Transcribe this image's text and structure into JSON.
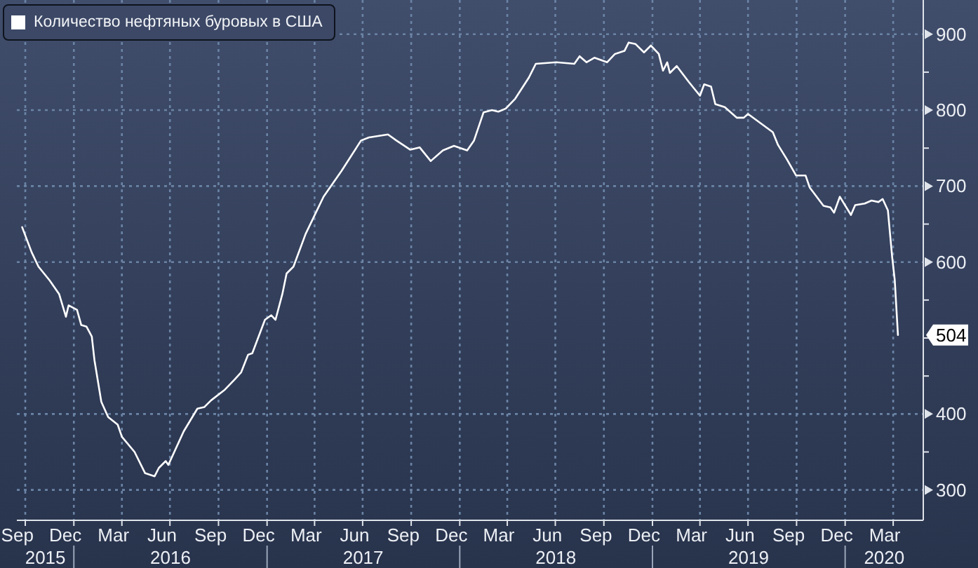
{
  "chart_data": {
    "type": "line",
    "legend": "top left",
    "grid": true,
    "line_style": "solid",
    "marker": "none",
    "x": [
      "2015-09-25",
      "2015-10-13",
      "2015-10-26",
      "2015-11-16",
      "2015-12-04",
      "2015-12-17",
      "2015-12-22",
      "2016-01-07",
      "2016-01-15",
      "2016-01-25",
      "2016-02-04",
      "2016-02-09",
      "2016-02-22",
      "2016-03-06",
      "2016-03-24",
      "2016-04-01",
      "2016-04-25",
      "2016-05-15",
      "2016-06-02",
      "2016-06-10",
      "2016-06-23",
      "2016-06-28",
      "2016-07-27",
      "2016-08-22",
      "2016-09-04",
      "2016-09-17",
      "2016-10-13",
      "2016-10-31",
      "2016-11-13",
      "2016-11-26",
      "2016-12-04",
      "2016-12-28",
      "2017-01-09",
      "2017-01-17",
      "2017-01-30",
      "2017-02-07",
      "2017-02-20",
      "2017-03-15",
      "2017-04-18",
      "2017-05-22",
      "2017-06-28",
      "2017-07-13",
      "2017-08-18",
      "2017-09-03",
      "2017-09-29",
      "2017-10-17",
      "2017-11-07",
      "2017-11-30",
      "2017-12-21",
      "2018-01-15",
      "2018-01-28",
      "2018-02-15",
      "2018-03-03",
      "2018-03-15",
      "2018-03-29",
      "2018-04-16",
      "2018-05-12",
      "2018-05-25",
      "2018-07-03",
      "2018-08-06",
      "2018-08-16",
      "2018-08-29",
      "2018-09-13",
      "2018-10-07",
      "2018-10-22",
      "2018-11-09",
      "2018-11-17",
      "2018-11-30",
      "2018-12-16",
      "2018-12-29",
      "2019-01-13",
      "2019-01-21",
      "2019-01-29",
      "2019-02-03",
      "2019-02-16",
      "2019-03-11",
      "2019-04-01",
      "2019-04-09",
      "2019-04-22",
      "2019-04-30",
      "2019-05-18",
      "2019-06-10",
      "2019-06-23",
      "2019-07-01",
      "2019-08-17",
      "2019-08-27",
      "2019-09-12",
      "2019-09-30",
      "2019-10-18",
      "2019-10-26",
      "2019-11-21",
      "2019-12-04",
      "2019-12-11",
      "2019-12-22",
      "2020-01-12",
      "2020-01-20",
      "2020-02-07",
      "2020-02-20",
      "2020-03-04",
      "2020-03-12",
      "2020-03-22",
      "2020-03-30",
      "2020-04-04",
      "2020-04-10"
    ],
    "series": [
      {
        "name": "Количество нефтяных буровых в США",
        "color": "#ffffff",
        "values": [
          646,
          613,
          594,
          576,
          558,
          528,
          543,
          537,
          517,
          515,
          502,
          471,
          416,
          396,
          386,
          370,
          350,
          322,
          318,
          329,
          338,
          333,
          377,
          407,
          409,
          418,
          432,
          445,
          455,
          478,
          480,
          524,
          530,
          524,
          558,
          585,
          594,
          637,
          686,
          720,
          760,
          764,
          768,
          760,
          748,
          751,
          733,
          747,
          753,
          747,
          760,
          797,
          800,
          798,
          802,
          815,
          843,
          861,
          863,
          861,
          871,
          863,
          869,
          863,
          874,
          878,
          889,
          887,
          876,
          885,
          874,
          852,
          863,
          849,
          858,
          837,
          819,
          834,
          831,
          808,
          804,
          790,
          790,
          795,
          771,
          754,
          736,
          714,
          714,
          698,
          674,
          672,
          665,
          686,
          662,
          675,
          677,
          681,
          679,
          683,
          668,
          607,
          576,
          504
        ]
      }
    ],
    "annotations": [
      {
        "text": "504",
        "x": "2020-04-10",
        "y": 504
      }
    ],
    "xlim": [
      "2015-09-15",
      "2020-05-28"
    ],
    "xticks": [
      {
        "value": "2015-09-16",
        "label": "Sep"
      },
      {
        "value": "2015-10-01",
        "label": null
      },
      {
        "value": "2015-12-16",
        "label": "Dec"
      },
      {
        "value": "2016-01-01",
        "label": null
      },
      {
        "value": "2016-03-16",
        "label": "Mar"
      },
      {
        "value": "2016-04-01",
        "label": null
      },
      {
        "value": "2016-06-16",
        "label": "Jun"
      },
      {
        "value": "2016-07-01",
        "label": null
      },
      {
        "value": "2016-09-16",
        "label": "Sep"
      },
      {
        "value": "2016-10-01",
        "label": null
      },
      {
        "value": "2016-12-16",
        "label": "Dec"
      },
      {
        "value": "2017-01-01",
        "label": null
      },
      {
        "value": "2017-03-16",
        "label": "Mar"
      },
      {
        "value": "2017-04-01",
        "label": null
      },
      {
        "value": "2017-06-16",
        "label": "Jun"
      },
      {
        "value": "2017-07-01",
        "label": null
      },
      {
        "value": "2017-09-16",
        "label": "Sep"
      },
      {
        "value": "2017-10-01",
        "label": null
      },
      {
        "value": "2017-12-16",
        "label": "Dec"
      },
      {
        "value": "2018-01-01",
        "label": null
      },
      {
        "value": "2018-03-16",
        "label": "Mar"
      },
      {
        "value": "2018-04-01",
        "label": null
      },
      {
        "value": "2018-06-16",
        "label": "Jun"
      },
      {
        "value": "2018-07-01",
        "label": null
      },
      {
        "value": "2018-09-16",
        "label": "Sep"
      },
      {
        "value": "2018-10-01",
        "label": null
      },
      {
        "value": "2018-12-16",
        "label": "Dec"
      },
      {
        "value": "2019-01-01",
        "label": null
      },
      {
        "value": "2019-03-16",
        "label": "Mar"
      },
      {
        "value": "2019-04-01",
        "label": null
      },
      {
        "value": "2019-06-16",
        "label": "Jun"
      },
      {
        "value": "2019-07-01",
        "label": null
      },
      {
        "value": "2019-09-16",
        "label": "Sep"
      },
      {
        "value": "2019-10-01",
        "label": null
      },
      {
        "value": "2019-12-16",
        "label": "Dec"
      },
      {
        "value": "2020-01-01",
        "label": null
      },
      {
        "value": "2020-03-16",
        "label": "Mar"
      },
      {
        "value": "2020-04-01",
        "label": null
      }
    ],
    "x2lim": [
      "2015-09-15",
      "2020-05-28"
    ],
    "x2ticks": [
      {
        "value": "2015-11-08",
        "label": "2015"
      },
      {
        "value": "2016-01-01",
        "label": null
      },
      {
        "value": "2016-07-02",
        "label": "2016"
      },
      {
        "value": "2017-01-01",
        "label": null
      },
      {
        "value": "2017-07-02",
        "label": "2017"
      },
      {
        "value": "2018-01-01",
        "label": null
      },
      {
        "value": "2018-07-02",
        "label": "2018"
      },
      {
        "value": "2019-01-01",
        "label": null
      },
      {
        "value": "2019-07-02",
        "label": "2019"
      },
      {
        "value": "2020-01-01",
        "label": null
      },
      {
        "value": "2020-03-15",
        "label": "2020"
      }
    ],
    "ylim": [
      260,
      945
    ],
    "yticks": [
      300,
      {
        "value": 350,
        "label": null
      },
      400,
      {
        "value": 450,
        "label": null
      },
      {
        "value": 500,
        "label": null
      },
      {
        "value": 550,
        "label": null
      },
      600,
      {
        "value": 650,
        "label": null
      },
      700,
      {
        "value": 750,
        "label": null
      },
      800,
      {
        "value": 850,
        "label": null
      },
      900
    ]
  }
}
